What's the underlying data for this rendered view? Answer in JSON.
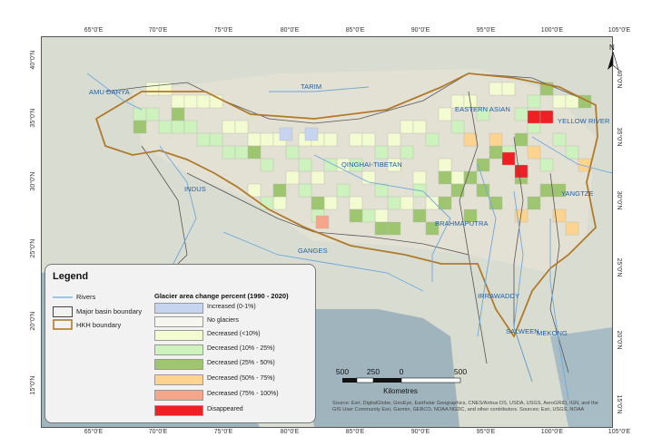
{
  "longitude_ticks": [
    "65°0'E",
    "70°0'E",
    "75°0'E",
    "80°0'E",
    "85°0'E",
    "90°0'E",
    "95°0'E",
    "100°0'E",
    "105°0'E"
  ],
  "latitude_ticks": [
    "40°0'N",
    "35°0'N",
    "30°0'N",
    "25°0'N",
    "20°0'N",
    "15°0'N"
  ],
  "basins": [
    "AMU DARYA",
    "TARIM",
    "EASTERN ASIAN",
    "YELLOW RIVER",
    "QINGHAI-TIBETAN",
    "INDUS",
    "YANGTZE",
    "BRAHMAPUTRA",
    "GANGES",
    "IRRAWADDY",
    "SALWEEN",
    "MEKONG"
  ],
  "north_label": "N",
  "legend": {
    "title": "Legend",
    "rivers": "Rivers",
    "major_basin": "Major basin boundary",
    "hkh": "HKH boundary",
    "change_title": "Glacier area change percent (1990 - 2020)",
    "classes": [
      {
        "label": "Increased  (0-1%)",
        "color": "#c6d4f0"
      },
      {
        "label": "No glaciers",
        "color": "#f7f6ee"
      },
      {
        "label": "Decreased (<10%)",
        "color": "#f3fcd1"
      },
      {
        "label": "Decreased (10% - 25%)",
        "color": "#cdf2bd"
      },
      {
        "label": "Decreased  (25% - 50%)",
        "color": "#9ec670"
      },
      {
        "label": "Decreased (50% - 75%)",
        "color": "#fcd48f"
      },
      {
        "label": "Decreased (75% - 100%)",
        "color": "#f5a58a"
      },
      {
        "label": "Disappeared",
        "color": "#ed2024"
      }
    ],
    "line_colors": {
      "rivers": "#6fa8dc",
      "major_basin": "#444444",
      "hkh": "#b07a2a"
    }
  },
  "scale": {
    "ticks": [
      "500",
      "250",
      "0",
      "500"
    ],
    "unit": "Kilometres"
  },
  "source": "Source: Esri, DigitalGlobe, GeoEye, Earthstar Geographics, CNES/Airbus DS, USDA, USGS, AeroGRID, IGN, and the GIS User Community Esri, Garmin, GEBCO, NOAA NGDC, and other contributors. Sources: Esri, USGS, NOAA"
}
